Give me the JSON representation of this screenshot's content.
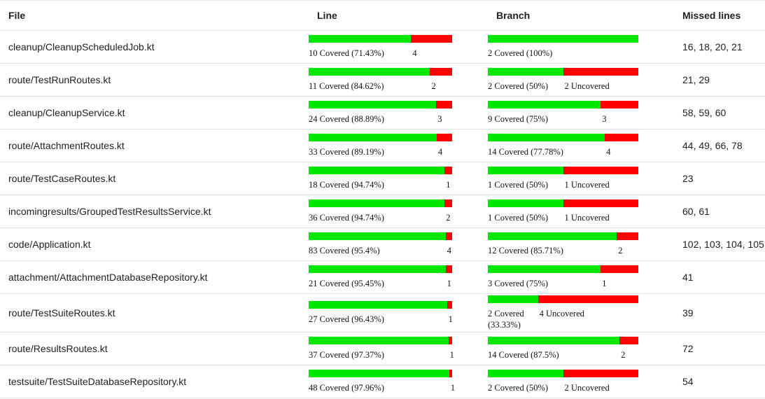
{
  "colors": {
    "covered": "#00e800",
    "uncovered": "#ff0000",
    "row_separator": "#e0e0e0"
  },
  "table": {
    "columns": [
      {
        "label": "File"
      },
      {
        "label": "Line"
      },
      {
        "label": "Branch"
      },
      {
        "label": "Missed lines"
      }
    ],
    "rows": [
      {
        "file": "cleanup/CleanupScheduledJob.kt",
        "line": {
          "covered_pct": 71.43,
          "covered_label": "10 Covered (71.43%)",
          "missed_label": "4"
        },
        "branch": {
          "covered_pct": 100,
          "covered_label": "2 Covered (100%)",
          "missed_label": ""
        },
        "missed_lines": "16, 18, 20, 21"
      },
      {
        "file": "route/TestRunRoutes.kt",
        "line": {
          "covered_pct": 84.62,
          "covered_label": "11 Covered (84.62%)",
          "missed_label": "2"
        },
        "branch": {
          "covered_pct": 50,
          "covered_label": "2 Covered (50%)",
          "missed_label": "2 Uncovered"
        },
        "missed_lines": "21, 29"
      },
      {
        "file": "cleanup/CleanupService.kt",
        "line": {
          "covered_pct": 88.89,
          "covered_label": "24 Covered (88.89%)",
          "missed_label": "3"
        },
        "branch": {
          "covered_pct": 75,
          "covered_label": "9 Covered (75%)",
          "missed_label": "3"
        },
        "missed_lines": "58, 59, 60"
      },
      {
        "file": "route/AttachmentRoutes.kt",
        "line": {
          "covered_pct": 89.19,
          "covered_label": "33 Covered (89.19%)",
          "missed_label": "4"
        },
        "branch": {
          "covered_pct": 77.78,
          "covered_label": "14 Covered (77.78%)",
          "missed_label": "4"
        },
        "missed_lines": "44, 49, 66, 78"
      },
      {
        "file": "route/TestCaseRoutes.kt",
        "line": {
          "covered_pct": 94.74,
          "covered_label": "18 Covered (94.74%)",
          "missed_label": "1"
        },
        "branch": {
          "covered_pct": 50,
          "covered_label": "1 Covered (50%)",
          "missed_label": "1 Uncovered"
        },
        "missed_lines": "23"
      },
      {
        "file": "incomingresults/GroupedTestResultsService.kt",
        "line": {
          "covered_pct": 94.74,
          "covered_label": "36 Covered (94.74%)",
          "missed_label": "2"
        },
        "branch": {
          "covered_pct": 50,
          "covered_label": "1 Covered (50%)",
          "missed_label": "1 Uncovered"
        },
        "missed_lines": "60, 61"
      },
      {
        "file": "code/Application.kt",
        "line": {
          "covered_pct": 95.4,
          "covered_label": "83 Covered (95.4%)",
          "missed_label": "4"
        },
        "branch": {
          "covered_pct": 85.71,
          "covered_label": "12 Covered (85.71%)",
          "missed_label": "2"
        },
        "missed_lines": "102, 103, 104, 105"
      },
      {
        "file": "attachment/AttachmentDatabaseRepository.kt",
        "line": {
          "covered_pct": 95.45,
          "covered_label": "21 Covered (95.45%)",
          "missed_label": "1"
        },
        "branch": {
          "covered_pct": 75,
          "covered_label": "3 Covered (75%)",
          "missed_label": "1"
        },
        "missed_lines": "41"
      },
      {
        "file": "route/TestSuiteRoutes.kt",
        "line": {
          "covered_pct": 96.43,
          "covered_label": "27 Covered (96.43%)",
          "missed_label": "1"
        },
        "branch": {
          "covered_pct": 33.33,
          "covered_label": "2 Covered (33.33%)",
          "missed_label": "4 Uncovered"
        },
        "missed_lines": "39"
      },
      {
        "file": "route/ResultsRoutes.kt",
        "line": {
          "covered_pct": 97.37,
          "covered_label": "37 Covered (97.37%)",
          "missed_label": "1"
        },
        "branch": {
          "covered_pct": 87.5,
          "covered_label": "14 Covered (87.5%)",
          "missed_label": "2"
        },
        "missed_lines": "72"
      },
      {
        "file": "testsuite/TestSuiteDatabaseRepository.kt",
        "line": {
          "covered_pct": 97.96,
          "covered_label": "48 Covered (97.96%)",
          "missed_label": "1"
        },
        "branch": {
          "covered_pct": 50,
          "covered_label": "2 Covered (50%)",
          "missed_label": "2 Uncovered"
        },
        "missed_lines": "54"
      }
    ]
  }
}
